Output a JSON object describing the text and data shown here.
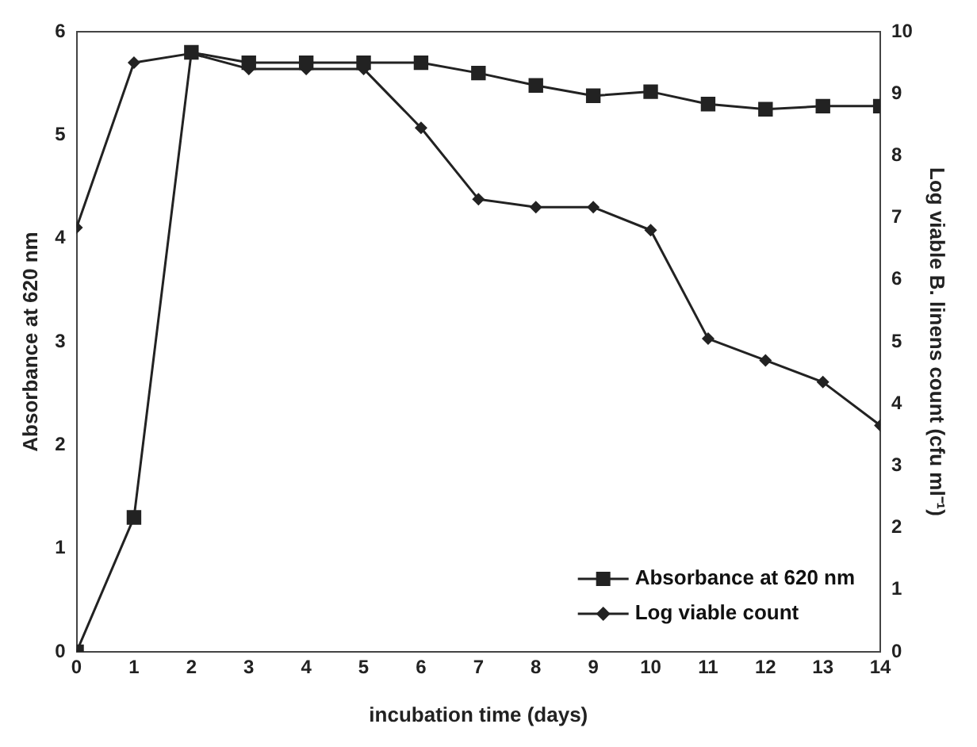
{
  "chart_data": {
    "type": "line",
    "xlabel": "incubation time (days)",
    "ylabel": "Absorbance at 620 nm",
    "y2label": "Log viable B. linens count (cfu ml⁻¹)",
    "x": [
      0,
      1,
      2,
      3,
      4,
      5,
      6,
      7,
      8,
      9,
      10,
      11,
      12,
      13,
      14
    ],
    "series": [
      {
        "name": "Absorbance at 620 nm",
        "color": "#222222",
        "marker": "square",
        "values": [
          0,
          1.3,
          5.8,
          5.7,
          5.7,
          5.7,
          5.7,
          5.6,
          5.48,
          5.38,
          5.42,
          5.3,
          5.25,
          5.28,
          5.28
        ]
      },
      {
        "name": "Log viable count",
        "color": "#222222",
        "marker": "diamond",
        "axis": "y2",
        "values": [
          6.84,
          9.5,
          9.65,
          9.4,
          9.4,
          9.4,
          8.45,
          7.3,
          7.17,
          7.17,
          6.8,
          5.05,
          4.7,
          4.35,
          3.65
        ]
      }
    ],
    "xlim": [
      0,
      14
    ],
    "xticks": [
      0,
      1,
      2,
      3,
      4,
      5,
      6,
      7,
      8,
      9,
      10,
      11,
      12,
      13,
      14
    ],
    "ylim": [
      0,
      6
    ],
    "yticks": [
      0,
      1,
      2,
      3,
      4,
      5,
      6
    ],
    "y2lim": [
      0,
      10
    ],
    "y2ticks": [
      0,
      1,
      2,
      3,
      4,
      5,
      6,
      7,
      8,
      9,
      10
    ],
    "grid": false,
    "legend": "bottom right"
  }
}
